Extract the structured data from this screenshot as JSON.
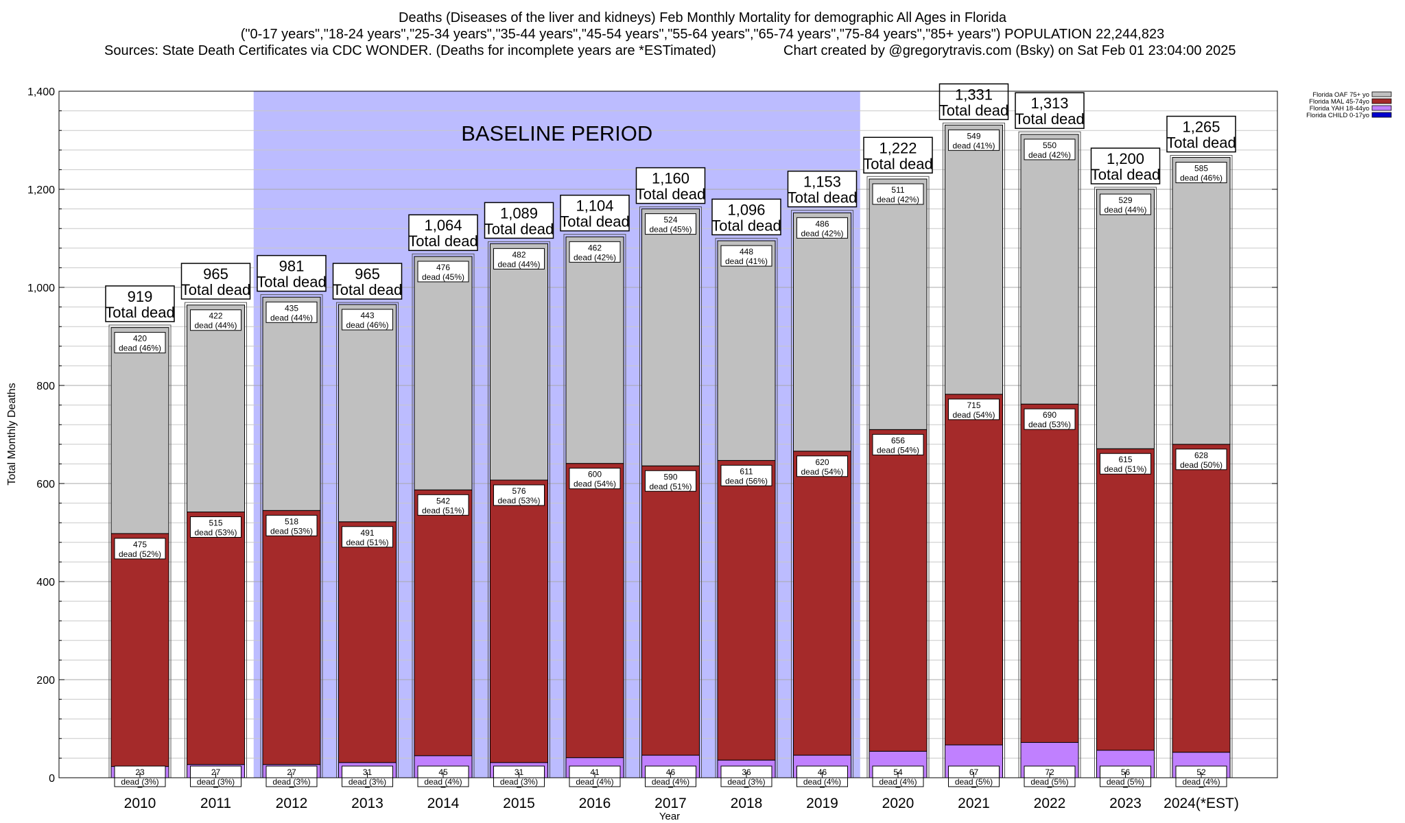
{
  "titles": {
    "line1": "Deaths (Diseases of the liver and kidneys) Feb Monthly Mortality for demographic All Ages in Florida",
    "line2": "(\"0-17 years\",\"18-24 years\",\"25-34 years\",\"35-44 years\",\"45-54 years\",\"55-64 years\",\"65-74 years\",\"75-84 years\",\"85+ years\") POPULATION 22,244,823",
    "line3a": "Sources: State Death Certificates via CDC WONDER. (Deaths for incomplete years are *ESTimated)",
    "line3b": "Chart created by @gregorytravis.com (Bsky) on Sat Feb 01 23:04:00 2025"
  },
  "colors": {
    "oaf": "#c0c0c0",
    "mal": "#a52a2a",
    "yah": "#c080ff",
    "child": "#0000cd",
    "baseline": "#bcbcff",
    "grid": "#c8c8c8"
  },
  "chart_data": {
    "type": "bar",
    "stacked": true,
    "ylabel": "Total Monthly Deaths",
    "xlabel": "Year",
    "ylim": [
      0,
      1400
    ],
    "yticks": [
      0,
      200,
      400,
      600,
      800,
      1000,
      1200,
      1400
    ],
    "ytick_labels": [
      "0",
      "200",
      "400",
      "600",
      "800",
      "1,000",
      "1,200",
      "1,400"
    ],
    "grid": true,
    "legend_position": "top-right",
    "baseline_label": "BASELINE PERIOD",
    "baseline_range": [
      "2012",
      "2019"
    ],
    "total_suffix": "Total dead",
    "categories": [
      "2010",
      "2011",
      "2012",
      "2013",
      "2014",
      "2015",
      "2016",
      "2017",
      "2018",
      "2019",
      "2020",
      "2021",
      "2022",
      "2023",
      "2024(*EST)"
    ],
    "totals": [
      919,
      965,
      981,
      965,
      1064,
      1089,
      1104,
      1160,
      1096,
      1153,
      1222,
      1331,
      1313,
      1200,
      1265
    ],
    "total_labels": [
      "919",
      "965",
      "981",
      "965",
      "1,064",
      "1,089",
      "1,104",
      "1,160",
      "1,096",
      "1,153",
      "1,222",
      "1,331",
      "1,313",
      "1,200",
      "1,265"
    ],
    "series": [
      {
        "name": "Florida CHILD 0-17yo",
        "key": "child",
        "values": [
          0,
          0,
          0,
          0,
          0,
          0,
          0,
          0,
          0,
          0,
          0,
          0,
          0,
          0,
          0
        ],
        "labels": [
          "",
          "",
          "",
          "",
          "",
          "",
          "",
          "",
          "",
          "",
          "",
          "",
          "",
          "",
          ""
        ]
      },
      {
        "name": "Florida YAH 18-44yo",
        "key": "yah",
        "values": [
          23,
          27,
          27,
          31,
          45,
          31,
          41,
          46,
          36,
          46,
          54,
          67,
          72,
          56,
          52
        ],
        "labels": [
          "23\ndead (3%)",
          "27\ndead (3%)",
          "27\ndead (3%)",
          "31\ndead (3%)",
          "45\ndead (4%)",
          "31\ndead (3%)",
          "41\ndead (4%)",
          "46\ndead (4%)",
          "36\ndead (3%)",
          "46\ndead (4%)",
          "54\ndead (4%)",
          "67\ndead (5%)",
          "72\ndead (5%)",
          "56\ndead (5%)",
          "52\ndead (4%)"
        ]
      },
      {
        "name": "Florida MAL 45-74yo",
        "key": "mal",
        "values": [
          475,
          515,
          518,
          491,
          542,
          576,
          600,
          590,
          611,
          620,
          656,
          715,
          690,
          615,
          628
        ],
        "labels": [
          "475\ndead (52%)",
          "515\ndead (53%)",
          "518\ndead (53%)",
          "491\ndead (51%)",
          "542\ndead (51%)",
          "576\ndead (53%)",
          "600\ndead (54%)",
          "590\ndead (51%)",
          "611\ndead (56%)",
          "620\ndead (54%)",
          "656\ndead (54%)",
          "715\ndead (54%)",
          "690\ndead (53%)",
          "615\ndead (51%)",
          "628\ndead (50%)"
        ]
      },
      {
        "name": "Florida OAF 75+ yo",
        "key": "oaf",
        "values": [
          420,
          422,
          435,
          443,
          476,
          482,
          462,
          524,
          448,
          486,
          511,
          549,
          550,
          529,
          585
        ],
        "labels": [
          "420\ndead (46%)",
          "422\ndead (44%)",
          "435\ndead (44%)",
          "443\ndead (46%)",
          "476\ndead (45%)",
          "482\ndead (44%)",
          "462\ndead (42%)",
          "524\ndead (45%)",
          "448\ndead (41%)",
          "486\ndead (42%)",
          "511\ndead (42%)",
          "549\ndead (41%)",
          "550\ndead (42%)",
          "529\ndead (44%)",
          "585\ndead (46%)"
        ]
      }
    ],
    "legend": [
      {
        "name": "Florida OAF 75+ yo",
        "key": "oaf"
      },
      {
        "name": "Florida MAL 45-74yo",
        "key": "mal"
      },
      {
        "name": "Florida YAH 18-44yo",
        "key": "yah"
      },
      {
        "name": "Florida CHILD 0-17yo",
        "key": "child"
      }
    ]
  }
}
